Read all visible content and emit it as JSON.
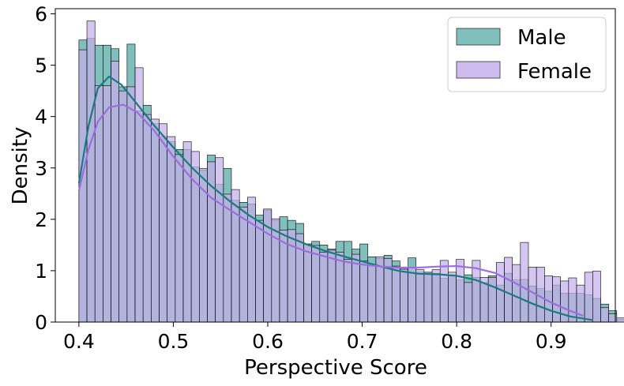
{
  "chart_data": {
    "type": "bar",
    "xlabel": "Perspective Score",
    "ylabel": "Density",
    "xlim": [
      0.375,
      0.968
    ],
    "ylim": [
      0,
      6.1
    ],
    "xticks": [
      "0.4",
      "0.5",
      "0.6",
      "0.7",
      "0.8",
      "0.9"
    ],
    "yticks": [
      "0",
      "1",
      "2",
      "3",
      "4",
      "5",
      "6"
    ],
    "legend_position": "top-right",
    "grid": false,
    "bin_start": 0.4,
    "bin_width": 0.0085,
    "series": [
      {
        "name": "Male",
        "color": "#80bfbc",
        "kde_color": "#1a7a80",
        "values": [
          5.49,
          5.52,
          5.39,
          5.39,
          5.32,
          4.58,
          5.41,
          4.11,
          4.22,
          3.86,
          3.61,
          3.51,
          3.36,
          3.36,
          3.02,
          2.96,
          3.25,
          2.68,
          2.99,
          2.37,
          2.33,
          2.3,
          2.08,
          2.18,
          1.98,
          2.05,
          1.98,
          1.92,
          1.52,
          1.57,
          1.5,
          1.42,
          1.57,
          1.57,
          1.42,
          1.52,
          1.27,
          1.24,
          1.3,
          1.19,
          1.03,
          1.25,
          0.97,
          0.97,
          0.95,
          0.85,
          0.92,
          0.82,
          0.92,
          0.87,
          0.77,
          0.9,
          0.72,
          0.95,
          0.82,
          0.83,
          0.7,
          0.65,
          0.6,
          0.72,
          0.56,
          0.56,
          0.56,
          0.53,
          0.46,
          0.35,
          0.22,
          0.05,
          0.02,
          0.01,
          0.0
        ],
        "kde": [
          [
            0.4,
            2.7
          ],
          [
            0.41,
            3.8
          ],
          [
            0.42,
            4.55
          ],
          [
            0.432,
            4.78
          ],
          [
            0.445,
            4.62
          ],
          [
            0.46,
            4.28
          ],
          [
            0.48,
            3.82
          ],
          [
            0.5,
            3.4
          ],
          [
            0.52,
            3.0
          ],
          [
            0.54,
            2.65
          ],
          [
            0.56,
            2.35
          ],
          [
            0.58,
            2.08
          ],
          [
            0.6,
            1.85
          ],
          [
            0.62,
            1.67
          ],
          [
            0.64,
            1.52
          ],
          [
            0.66,
            1.39
          ],
          [
            0.68,
            1.28
          ],
          [
            0.7,
            1.18
          ],
          [
            0.72,
            1.08
          ],
          [
            0.74,
            0.99
          ],
          [
            0.76,
            0.94
          ],
          [
            0.78,
            0.93
          ],
          [
            0.8,
            0.9
          ],
          [
            0.82,
            0.82
          ],
          [
            0.84,
            0.68
          ],
          [
            0.86,
            0.52
          ],
          [
            0.88,
            0.36
          ],
          [
            0.9,
            0.22
          ],
          [
            0.92,
            0.11
          ],
          [
            0.944,
            0.04
          ]
        ]
      },
      {
        "name": "Female",
        "color": "#c5b0ec",
        "kde_color": "#9b6dde",
        "values": [
          5.3,
          5.86,
          4.6,
          4.6,
          5.08,
          4.5,
          4.58,
          4.95,
          4.04,
          3.95,
          3.86,
          3.61,
          3.26,
          3.51,
          3.32,
          2.99,
          3.12,
          3.2,
          2.49,
          2.58,
          2.24,
          2.43,
          1.98,
          2.2,
          2.01,
          1.79,
          1.8,
          1.72,
          1.52,
          1.49,
          1.36,
          1.4,
          1.36,
          1.22,
          1.32,
          1.19,
          1.11,
          1.27,
          1.24,
          1.09,
          1.03,
          1.07,
          1.02,
          0.97,
          1.02,
          1.2,
          0.97,
          1.22,
          0.77,
          1.2,
          0.87,
          0.87,
          1.16,
          1.26,
          1.12,
          1.55,
          1.07,
          1.07,
          0.9,
          0.88,
          0.8,
          0.86,
          0.72,
          0.97,
          0.99,
          0.28,
          0.16,
          0.08,
          0.04,
          0.02,
          0.0
        ],
        "kde": [
          [
            0.4,
            2.55
          ],
          [
            0.41,
            3.35
          ],
          [
            0.42,
            3.9
          ],
          [
            0.432,
            4.18
          ],
          [
            0.447,
            4.23
          ],
          [
            0.462,
            4.08
          ],
          [
            0.48,
            3.72
          ],
          [
            0.5,
            3.22
          ],
          [
            0.52,
            2.78
          ],
          [
            0.54,
            2.42
          ],
          [
            0.56,
            2.18
          ],
          [
            0.58,
            1.95
          ],
          [
            0.6,
            1.72
          ],
          [
            0.62,
            1.52
          ],
          [
            0.64,
            1.38
          ],
          [
            0.66,
            1.28
          ],
          [
            0.68,
            1.18
          ],
          [
            0.7,
            1.12
          ],
          [
            0.72,
            1.08
          ],
          [
            0.74,
            1.06
          ],
          [
            0.76,
            1.06
          ],
          [
            0.78,
            1.08
          ],
          [
            0.8,
            1.09
          ],
          [
            0.82,
            1.05
          ],
          [
            0.84,
            0.96
          ],
          [
            0.86,
            0.78
          ],
          [
            0.88,
            0.58
          ],
          [
            0.9,
            0.38
          ],
          [
            0.92,
            0.22
          ],
          [
            0.934,
            0.12
          ]
        ]
      }
    ]
  }
}
